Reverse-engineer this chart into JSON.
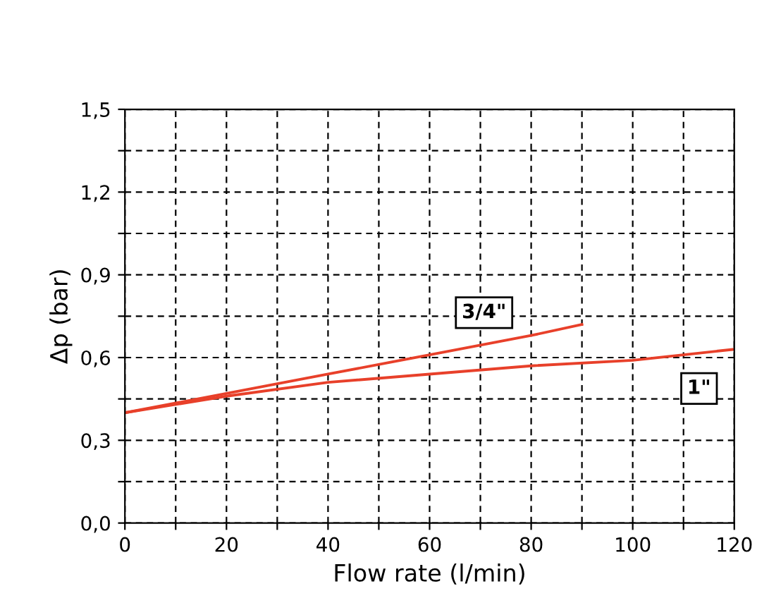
{
  "chart_data": {
    "type": "line",
    "xlabel": "Flow rate (l/min)",
    "ylabel": "Δp (bar)",
    "series": [
      {
        "name": "3/4\"",
        "color": "#e8402a",
        "x": [
          0,
          20,
          40,
          60,
          80,
          90
        ],
        "values": [
          0.4,
          0.47,
          0.54,
          0.61,
          0.68,
          0.72
        ]
      },
      {
        "name": "1\"",
        "color": "#e8402a",
        "x": [
          0,
          20,
          40,
          60,
          80,
          100,
          120
        ],
        "values": [
          0.4,
          0.46,
          0.51,
          0.54,
          0.57,
          0.59,
          0.63
        ]
      }
    ],
    "xlim": [
      0,
      120
    ],
    "ylim": [
      0,
      1.5
    ],
    "xticks": [
      0,
      {
        "value": 10,
        "label": null
      },
      20,
      {
        "value": 30,
        "label": null
      },
      40,
      {
        "value": 50,
        "label": null
      },
      60,
      {
        "value": 70,
        "label": null
      },
      80,
      {
        "value": 90,
        "label": null
      },
      100,
      {
        "value": 110,
        "label": null
      },
      120
    ],
    "yticks": [
      {
        "value": 0,
        "label": "0,0"
      },
      {
        "value": 0.15,
        "label": null
      },
      {
        "value": 0.3,
        "label": "0,3"
      },
      {
        "value": 0.45,
        "label": null
      },
      {
        "value": 0.6,
        "label": "0,6"
      },
      {
        "value": 0.75,
        "label": null
      },
      {
        "value": 0.9,
        "label": "0,9"
      },
      {
        "value": 1.05,
        "label": null
      },
      {
        "value": 1.2,
        "label": "1,2"
      },
      {
        "value": 1.35,
        "label": null
      },
      {
        "value": 1.5,
        "label": "1,5"
      }
    ],
    "grid": true,
    "line_style": "solid",
    "marker": "none",
    "legend": false
  }
}
